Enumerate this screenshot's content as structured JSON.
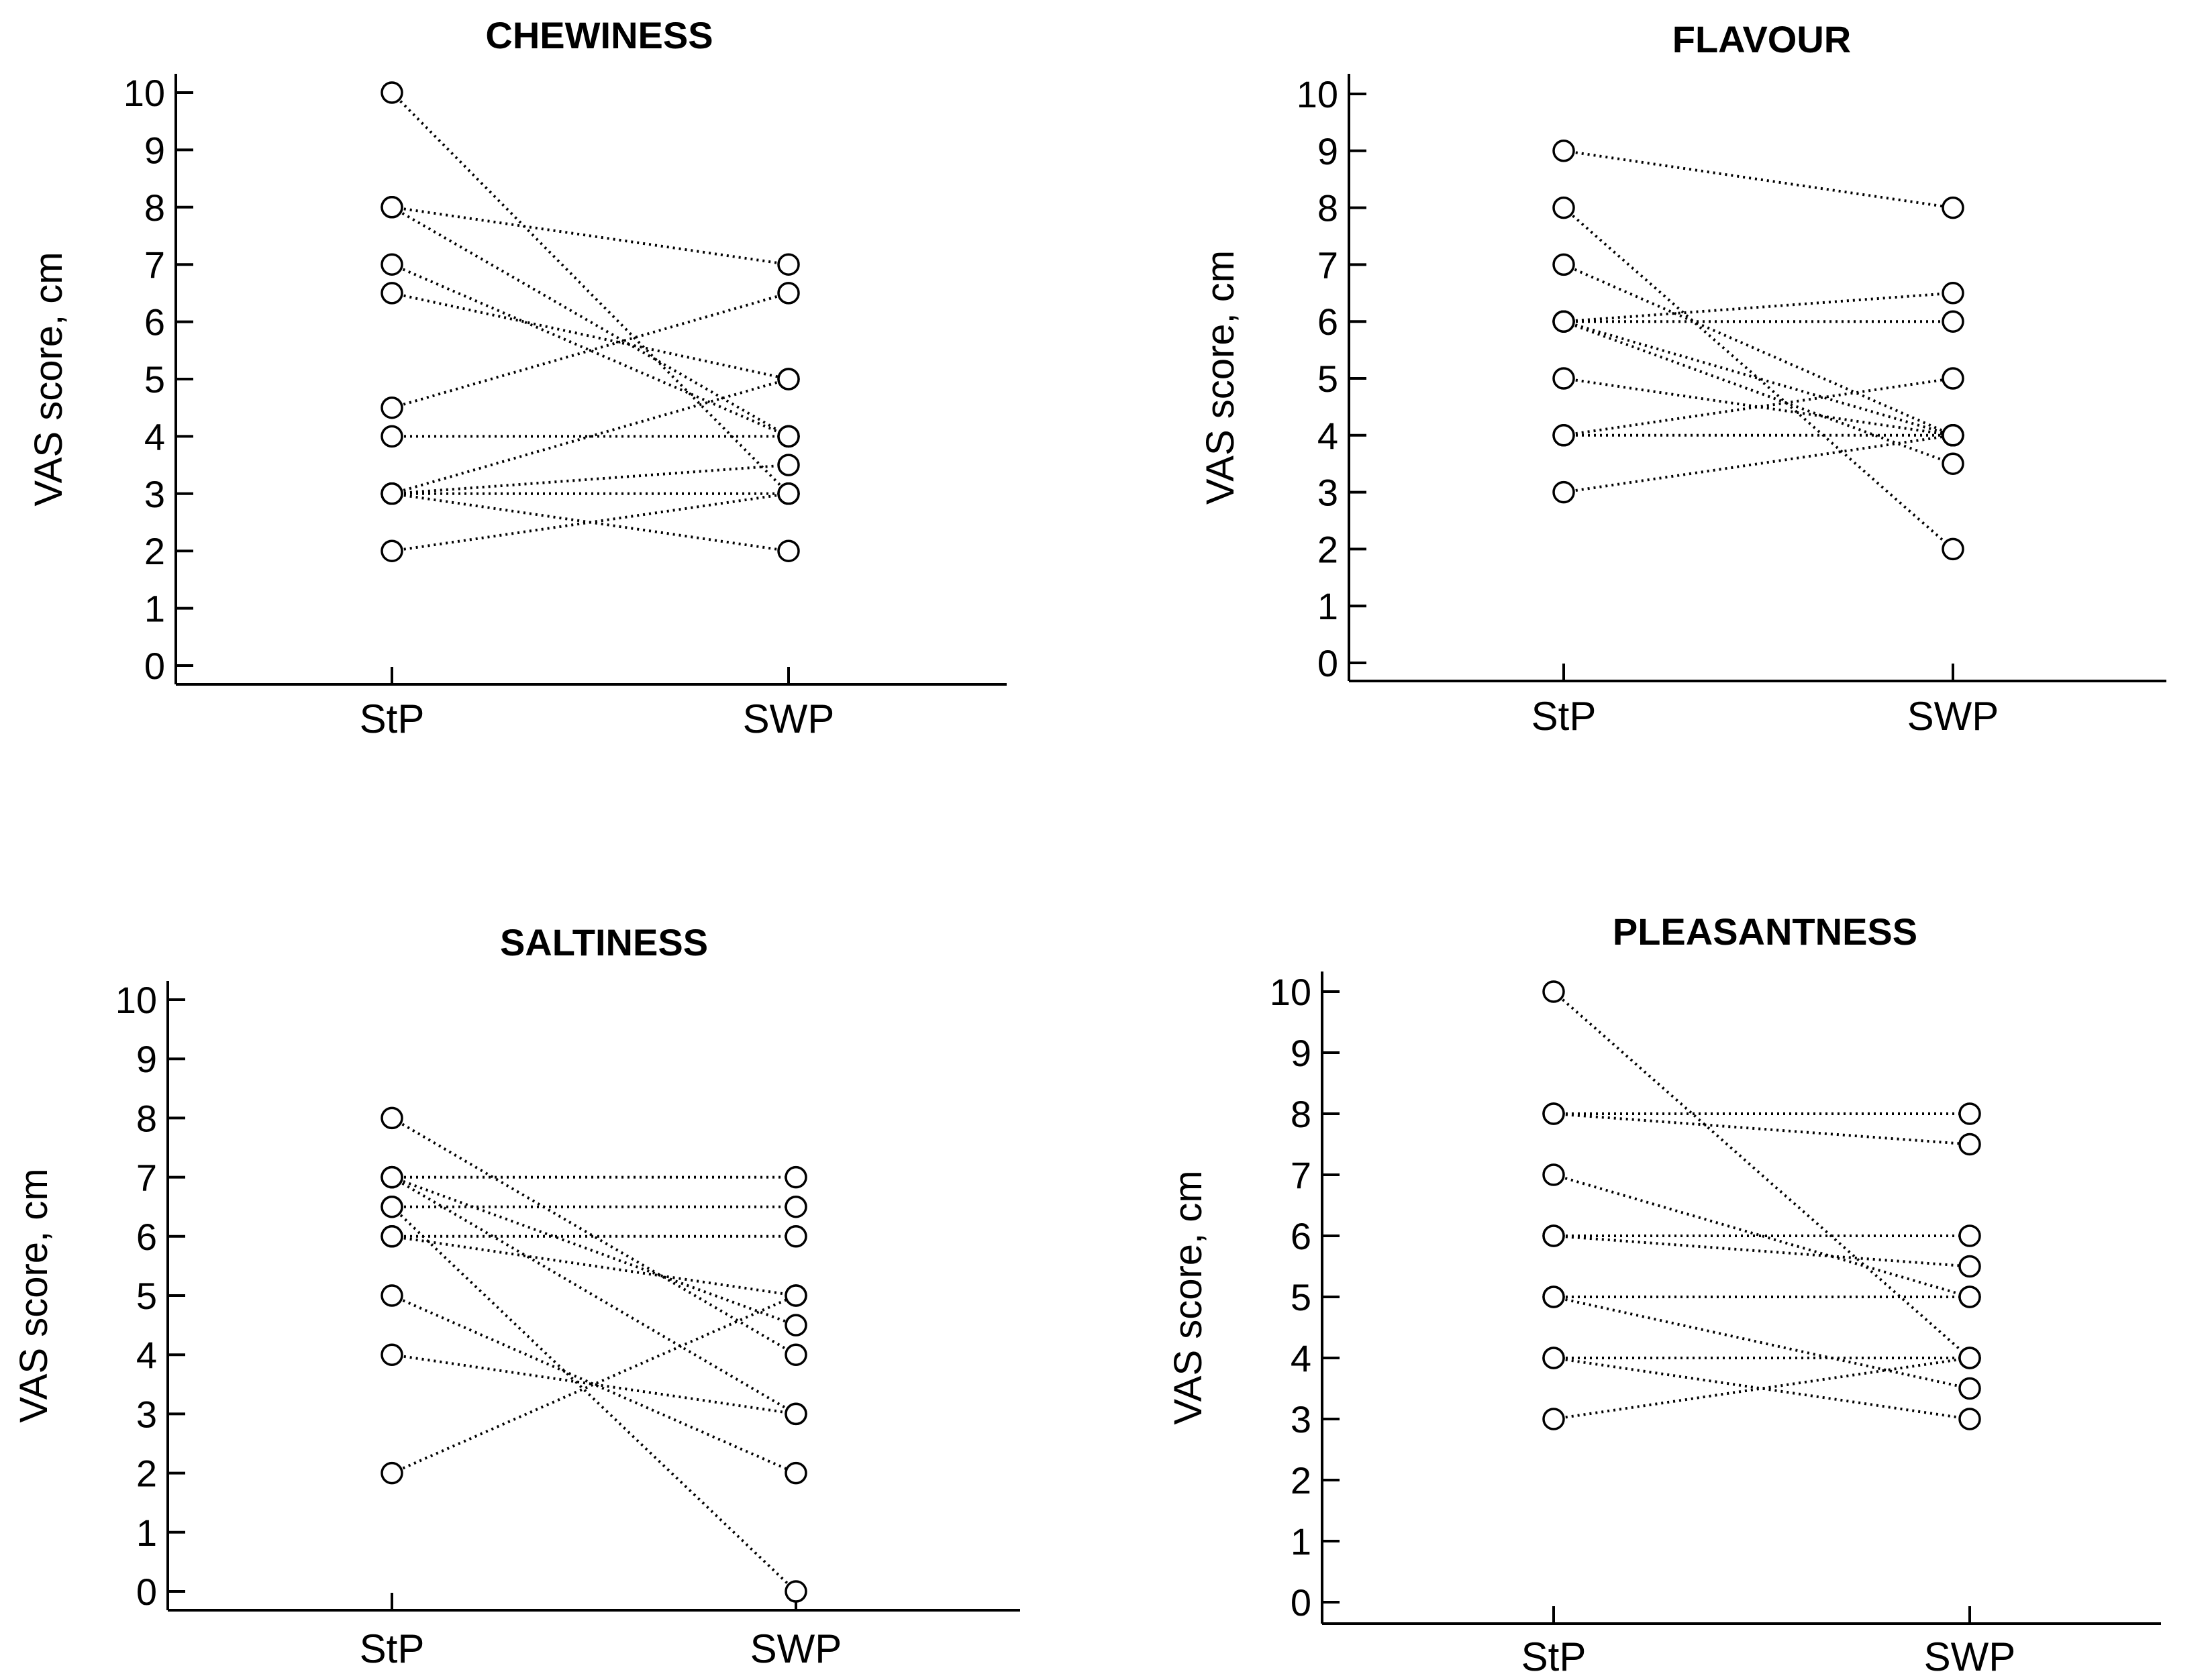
{
  "chart_data": [
    {
      "type": "line",
      "title": "CHEWINESS",
      "ylabel": "VAS score, cm",
      "xlabel": "",
      "categories": [
        "StP",
        "SWP"
      ],
      "ylim": [
        0,
        10
      ],
      "yticks": [
        "0",
        "1",
        "2",
        "3",
        "4",
        "5",
        "6",
        "7",
        "8",
        "9",
        "10"
      ],
      "pairs": [
        [
          10,
          3
        ],
        [
          8,
          7
        ],
        [
          8,
          4
        ],
        [
          7,
          4
        ],
        [
          6.5,
          5
        ],
        [
          4.5,
          6.5
        ],
        [
          4,
          4
        ],
        [
          3,
          5
        ],
        [
          3,
          3.5
        ],
        [
          3,
          3
        ],
        [
          3,
          2
        ],
        [
          2,
          3
        ]
      ]
    },
    {
      "type": "line",
      "title": "FLAVOUR",
      "ylabel": "VAS score, cm",
      "xlabel": "",
      "categories": [
        "StP",
        "SWP"
      ],
      "ylim": [
        0,
        10
      ],
      "yticks": [
        "0",
        "1",
        "2",
        "3",
        "4",
        "5",
        "6",
        "7",
        "8",
        "9",
        "10"
      ],
      "pairs": [
        [
          9,
          8
        ],
        [
          8,
          2
        ],
        [
          7,
          4
        ],
        [
          6,
          6.5
        ],
        [
          6,
          6
        ],
        [
          6,
          4
        ],
        [
          6,
          3.5
        ],
        [
          5,
          4
        ],
        [
          4,
          5
        ],
        [
          4,
          4
        ],
        [
          3,
          4
        ]
      ]
    },
    {
      "type": "line",
      "title": "SALTINESS",
      "ylabel": "VAS score, cm",
      "xlabel": "",
      "categories": [
        "StP",
        "SWP"
      ],
      "ylim": [
        0,
        10
      ],
      "yticks": [
        "0",
        "1",
        "2",
        "3",
        "4",
        "5",
        "6",
        "7",
        "8",
        "9",
        "10"
      ],
      "pairs": [
        [
          8,
          4
        ],
        [
          7,
          7
        ],
        [
          7,
          4.5
        ],
        [
          7,
          3
        ],
        [
          6.5,
          6.5
        ],
        [
          6.5,
          0
        ],
        [
          6,
          6
        ],
        [
          6,
          5
        ],
        [
          5,
          2
        ],
        [
          4,
          3
        ],
        [
          2,
          5
        ]
      ]
    },
    {
      "type": "line",
      "title": "PLEASANTNESS",
      "ylabel": "VAS score, cm",
      "xlabel": "",
      "categories": [
        "StP",
        "SWP"
      ],
      "ylim": [
        0,
        10
      ],
      "yticks": [
        "0",
        "1",
        "2",
        "3",
        "4",
        "5",
        "6",
        "7",
        "8",
        "9",
        "10"
      ],
      "pairs": [
        [
          10,
          4
        ],
        [
          8,
          8
        ],
        [
          8,
          7.5
        ],
        [
          7,
          5
        ],
        [
          6,
          6
        ],
        [
          6,
          5.5
        ],
        [
          5,
          5
        ],
        [
          5,
          3.5
        ],
        [
          4,
          4
        ],
        [
          4,
          3
        ],
        [
          3,
          4
        ]
      ]
    }
  ]
}
